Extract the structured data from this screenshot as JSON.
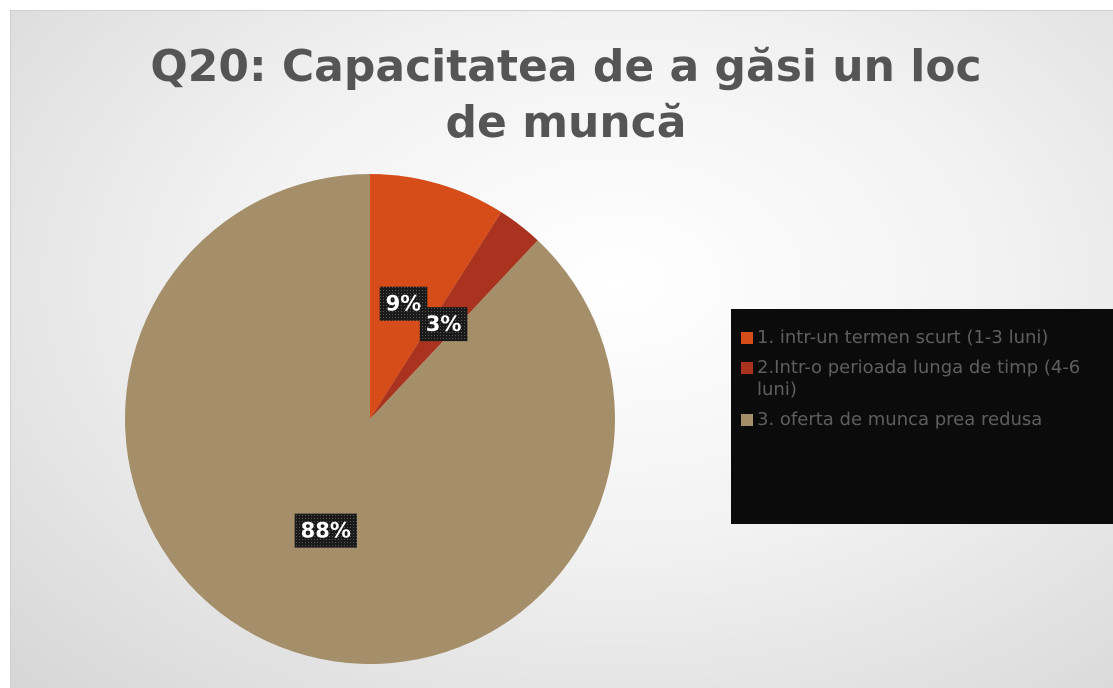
{
  "chart_data": {
    "type": "pie",
    "title": "Q20: Capacitatea de a găsi un loc de muncă",
    "categories": [
      "1. intr-un termen scurt (1-3 luni)",
      "2.Intr-o perioada lunga de timp (4-6 luni)",
      "3. oferta de munca prea redusa"
    ],
    "values": [
      9,
      3,
      88
    ],
    "value_labels": [
      "9%",
      "3%",
      "88%"
    ],
    "colors": [
      "#d64d1a",
      "#a9331f",
      "#a58f6b"
    ],
    "legend": "right"
  }
}
